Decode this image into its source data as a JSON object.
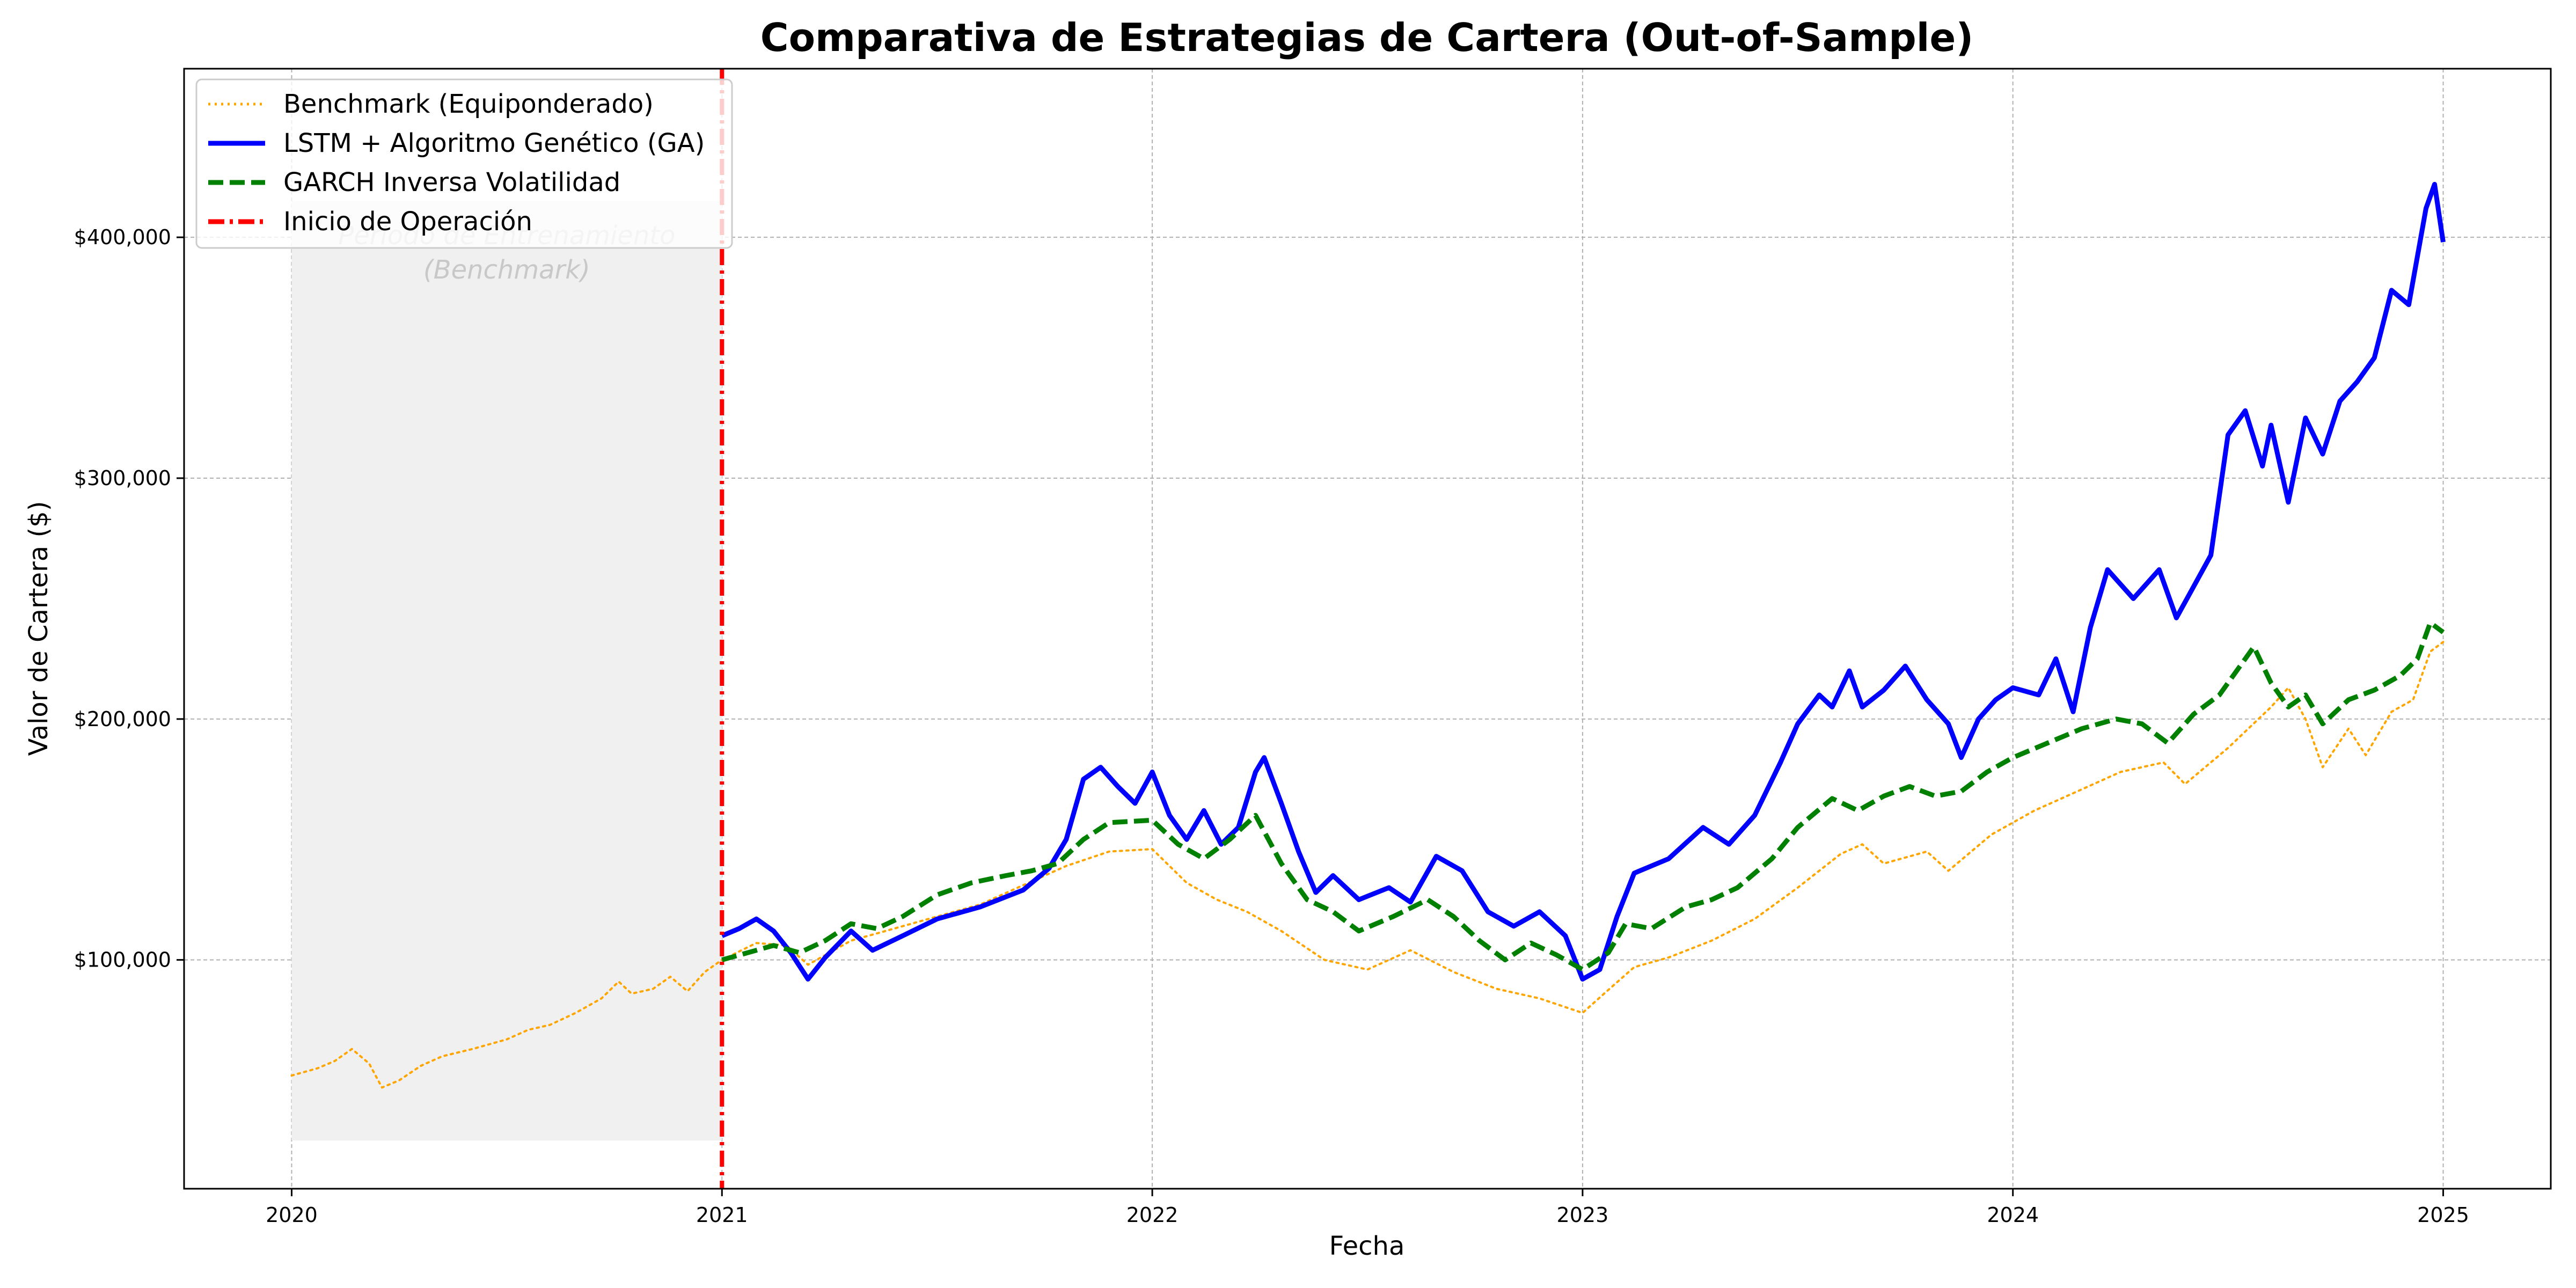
{
  "chart_data": {
    "type": "line",
    "title": "Comparativa de Estrategias de Cartera (Out-of-Sample)",
    "xlabel": "Fecha",
    "ylabel": "Valor de Cartera ($)",
    "x_ticks": [
      "2020",
      "2021",
      "2022",
      "2023",
      "2024",
      "2025"
    ],
    "y_ticks": [
      "$100,000",
      "$200,000",
      "$300,000",
      "$400,000"
    ],
    "xlim": [
      2019.75,
      2025.25
    ],
    "ylim": [
      5000,
      470000
    ],
    "grid": true,
    "legend_position": "top-left",
    "shaded_region": {
      "x_start": 2020.0,
      "x_end": 2021.0,
      "y_range": [
        25000,
        415000
      ],
      "label_lines": [
        "Periodo de Entrenamiento",
        "(Benchmark)"
      ],
      "color": "#f0f0f0"
    },
    "vline": {
      "x": 2021.0,
      "name": "Inicio de Operación",
      "color": "#ff0000",
      "style": "dashdot"
    },
    "series": [
      {
        "name": "Benchmark (Equiponderado)",
        "color": "#ffa500",
        "style": "dotted",
        "points": [
          [
            2020.0,
            52000
          ],
          [
            2020.06,
            55000
          ],
          [
            2020.1,
            58000
          ],
          [
            2020.14,
            63000
          ],
          [
            2020.18,
            57000
          ],
          [
            2020.21,
            47000
          ],
          [
            2020.25,
            50000
          ],
          [
            2020.3,
            56000
          ],
          [
            2020.35,
            60000
          ],
          [
            2020.42,
            63000
          ],
          [
            2020.5,
            67000
          ],
          [
            2020.55,
            71000
          ],
          [
            2020.6,
            73000
          ],
          [
            2020.66,
            78000
          ],
          [
            2020.72,
            84000
          ],
          [
            2020.76,
            91000
          ],
          [
            2020.79,
            86000
          ],
          [
            2020.84,
            88000
          ],
          [
            2020.88,
            93000
          ],
          [
            2020.92,
            87000
          ],
          [
            2020.96,
            95000
          ],
          [
            2021.0,
            100000
          ],
          [
            2021.08,
            107000
          ],
          [
            2021.15,
            106000
          ],
          [
            2021.2,
            98000
          ],
          [
            2021.3,
            108000
          ],
          [
            2021.4,
            113000
          ],
          [
            2021.5,
            118000
          ],
          [
            2021.6,
            123000
          ],
          [
            2021.7,
            131000
          ],
          [
            2021.8,
            139000
          ],
          [
            2021.9,
            145000
          ],
          [
            2022.0,
            146000
          ],
          [
            2022.08,
            132000
          ],
          [
            2022.15,
            125000
          ],
          [
            2022.22,
            120000
          ],
          [
            2022.3,
            112000
          ],
          [
            2022.4,
            100000
          ],
          [
            2022.5,
            96000
          ],
          [
            2022.6,
            104000
          ],
          [
            2022.7,
            95000
          ],
          [
            2022.8,
            88000
          ],
          [
            2022.9,
            84000
          ],
          [
            2023.0,
            78000
          ],
          [
            2023.05,
            86000
          ],
          [
            2023.12,
            97000
          ],
          [
            2023.2,
            101000
          ],
          [
            2023.3,
            108000
          ],
          [
            2023.4,
            117000
          ],
          [
            2023.5,
            130000
          ],
          [
            2023.6,
            144000
          ],
          [
            2023.65,
            148000
          ],
          [
            2023.7,
            140000
          ],
          [
            2023.8,
            145000
          ],
          [
            2023.85,
            137000
          ],
          [
            2023.95,
            152000
          ],
          [
            2024.05,
            162000
          ],
          [
            2024.15,
            170000
          ],
          [
            2024.25,
            178000
          ],
          [
            2024.35,
            182000
          ],
          [
            2024.4,
            173000
          ],
          [
            2024.5,
            188000
          ],
          [
            2024.6,
            205000
          ],
          [
            2024.64,
            213000
          ],
          [
            2024.68,
            200000
          ],
          [
            2024.72,
            180000
          ],
          [
            2024.78,
            196000
          ],
          [
            2024.82,
            185000
          ],
          [
            2024.88,
            203000
          ],
          [
            2024.93,
            208000
          ],
          [
            2024.97,
            228000
          ],
          [
            2025.0,
            232000
          ]
        ]
      },
      {
        "name": "LSTM + Algoritmo Genético (GA)",
        "color": "#0000ff",
        "style": "solid",
        "points": [
          [
            2021.0,
            110000
          ],
          [
            2021.04,
            113000
          ],
          [
            2021.08,
            117000
          ],
          [
            2021.12,
            112000
          ],
          [
            2021.16,
            103000
          ],
          [
            2021.2,
            92000
          ],
          [
            2021.24,
            101000
          ],
          [
            2021.3,
            112000
          ],
          [
            2021.35,
            104000
          ],
          [
            2021.42,
            110000
          ],
          [
            2021.5,
            117000
          ],
          [
            2021.6,
            122000
          ],
          [
            2021.7,
            129000
          ],
          [
            2021.76,
            138000
          ],
          [
            2021.8,
            150000
          ],
          [
            2021.84,
            175000
          ],
          [
            2021.88,
            180000
          ],
          [
            2021.92,
            172000
          ],
          [
            2021.96,
            165000
          ],
          [
            2022.0,
            178000
          ],
          [
            2022.04,
            160000
          ],
          [
            2022.08,
            150000
          ],
          [
            2022.12,
            162000
          ],
          [
            2022.16,
            148000
          ],
          [
            2022.2,
            155000
          ],
          [
            2022.24,
            178000
          ],
          [
            2022.26,
            184000
          ],
          [
            2022.3,
            165000
          ],
          [
            2022.34,
            145000
          ],
          [
            2022.38,
            128000
          ],
          [
            2022.42,
            135000
          ],
          [
            2022.48,
            125000
          ],
          [
            2022.55,
            130000
          ],
          [
            2022.6,
            124000
          ],
          [
            2022.66,
            143000
          ],
          [
            2022.72,
            137000
          ],
          [
            2022.78,
            120000
          ],
          [
            2022.84,
            114000
          ],
          [
            2022.9,
            120000
          ],
          [
            2022.96,
            110000
          ],
          [
            2023.0,
            92000
          ],
          [
            2023.04,
            96000
          ],
          [
            2023.08,
            118000
          ],
          [
            2023.12,
            136000
          ],
          [
            2023.2,
            142000
          ],
          [
            2023.28,
            155000
          ],
          [
            2023.34,
            148000
          ],
          [
            2023.4,
            160000
          ],
          [
            2023.46,
            182000
          ],
          [
            2023.5,
            198000
          ],
          [
            2023.55,
            210000
          ],
          [
            2023.58,
            205000
          ],
          [
            2023.62,
            220000
          ],
          [
            2023.65,
            205000
          ],
          [
            2023.7,
            212000
          ],
          [
            2023.75,
            222000
          ],
          [
            2023.8,
            208000
          ],
          [
            2023.85,
            198000
          ],
          [
            2023.88,
            184000
          ],
          [
            2023.92,
            200000
          ],
          [
            2023.96,
            208000
          ],
          [
            2024.0,
            213000
          ],
          [
            2024.06,
            210000
          ],
          [
            2024.1,
            225000
          ],
          [
            2024.14,
            203000
          ],
          [
            2024.18,
            238000
          ],
          [
            2024.22,
            262000
          ],
          [
            2024.28,
            250000
          ],
          [
            2024.34,
            262000
          ],
          [
            2024.38,
            242000
          ],
          [
            2024.42,
            255000
          ],
          [
            2024.46,
            268000
          ],
          [
            2024.5,
            318000
          ],
          [
            2024.54,
            328000
          ],
          [
            2024.58,
            305000
          ],
          [
            2024.6,
            322000
          ],
          [
            2024.64,
            290000
          ],
          [
            2024.68,
            325000
          ],
          [
            2024.72,
            310000
          ],
          [
            2024.76,
            332000
          ],
          [
            2024.8,
            340000
          ],
          [
            2024.84,
            350000
          ],
          [
            2024.88,
            378000
          ],
          [
            2024.92,
            372000
          ],
          [
            2024.96,
            412000
          ],
          [
            2024.98,
            422000
          ],
          [
            2025.0,
            398000
          ]
        ]
      },
      {
        "name": "GARCH Inversa Volatilidad",
        "color": "#008000",
        "style": "dashed",
        "points": [
          [
            2021.0,
            100000
          ],
          [
            2021.06,
            103000
          ],
          [
            2021.12,
            106000
          ],
          [
            2021.18,
            103000
          ],
          [
            2021.24,
            108000
          ],
          [
            2021.3,
            115000
          ],
          [
            2021.36,
            113000
          ],
          [
            2021.42,
            118000
          ],
          [
            2021.5,
            127000
          ],
          [
            2021.58,
            132000
          ],
          [
            2021.66,
            135000
          ],
          [
            2021.72,
            137000
          ],
          [
            2021.78,
            140000
          ],
          [
            2021.84,
            150000
          ],
          [
            2021.9,
            157000
          ],
          [
            2022.0,
            158000
          ],
          [
            2022.06,
            148000
          ],
          [
            2022.12,
            142000
          ],
          [
            2022.18,
            150000
          ],
          [
            2022.24,
            160000
          ],
          [
            2022.3,
            140000
          ],
          [
            2022.36,
            125000
          ],
          [
            2022.42,
            120000
          ],
          [
            2022.48,
            112000
          ],
          [
            2022.56,
            118000
          ],
          [
            2022.64,
            125000
          ],
          [
            2022.7,
            118000
          ],
          [
            2022.76,
            108000
          ],
          [
            2022.82,
            100000
          ],
          [
            2022.88,
            107000
          ],
          [
            2022.94,
            102000
          ],
          [
            2023.0,
            96000
          ],
          [
            2023.06,
            103000
          ],
          [
            2023.1,
            115000
          ],
          [
            2023.16,
            113000
          ],
          [
            2023.24,
            122000
          ],
          [
            2023.3,
            125000
          ],
          [
            2023.36,
            130000
          ],
          [
            2023.44,
            142000
          ],
          [
            2023.5,
            155000
          ],
          [
            2023.58,
            167000
          ],
          [
            2023.64,
            162000
          ],
          [
            2023.7,
            168000
          ],
          [
            2023.76,
            172000
          ],
          [
            2023.82,
            168000
          ],
          [
            2023.88,
            170000
          ],
          [
            2023.94,
            178000
          ],
          [
            2024.0,
            184000
          ],
          [
            2024.08,
            190000
          ],
          [
            2024.16,
            196000
          ],
          [
            2024.24,
            200000
          ],
          [
            2024.3,
            198000
          ],
          [
            2024.36,
            190000
          ],
          [
            2024.42,
            202000
          ],
          [
            2024.48,
            210000
          ],
          [
            2024.52,
            220000
          ],
          [
            2024.56,
            230000
          ],
          [
            2024.6,
            215000
          ],
          [
            2024.64,
            205000
          ],
          [
            2024.68,
            210000
          ],
          [
            2024.72,
            198000
          ],
          [
            2024.78,
            208000
          ],
          [
            2024.84,
            212000
          ],
          [
            2024.9,
            218000
          ],
          [
            2024.94,
            225000
          ],
          [
            2024.97,
            240000
          ],
          [
            2025.0,
            236000
          ]
        ]
      }
    ]
  }
}
